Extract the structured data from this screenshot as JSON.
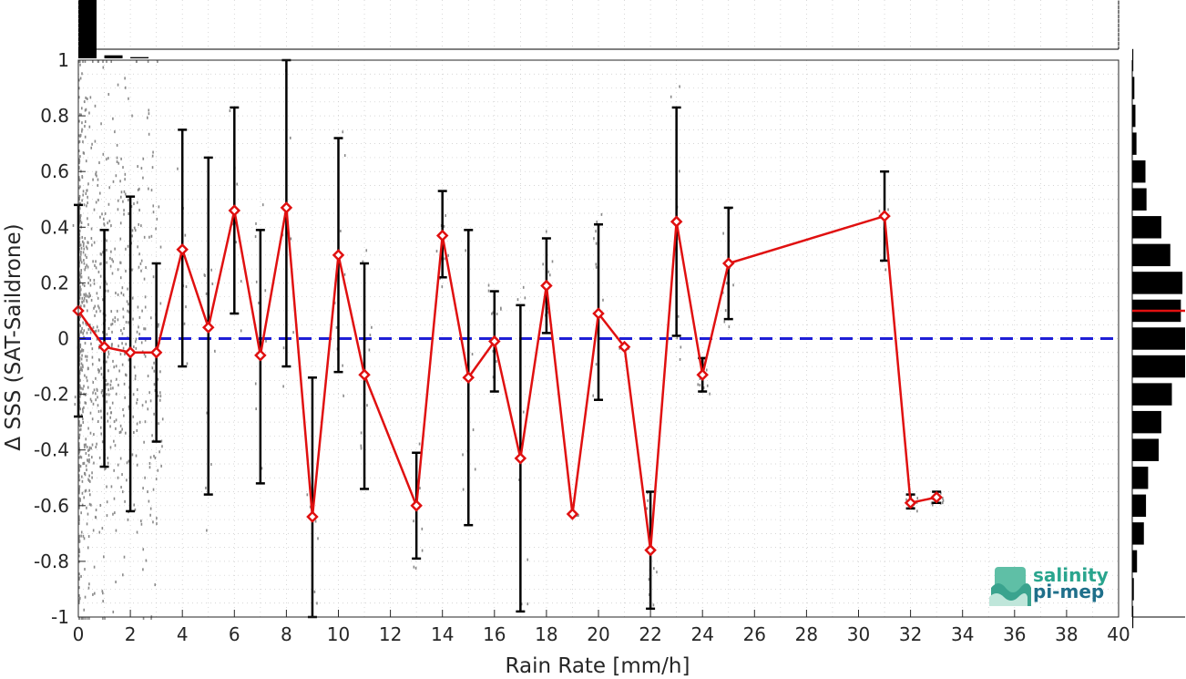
{
  "chart_data": {
    "type": "line",
    "xlabel": "Rain Rate [mm/h]",
    "ylabel": "Δ SSS (SAT-Saildrone)",
    "xlim": [
      0,
      40
    ],
    "ylim": [
      -1,
      1
    ],
    "x_ticks": [
      "0",
      "2",
      "4",
      "6",
      "8",
      "10",
      "12",
      "14",
      "16",
      "18",
      "20",
      "22",
      "24",
      "26",
      "28",
      "30",
      "32",
      "34",
      "36",
      "38",
      "40"
    ],
    "y_ticks": [
      "1",
      "0.8",
      "0.6",
      "0.4",
      "0.2",
      "0",
      "-0.2",
      "-0.4",
      "-0.6",
      "-0.8",
      "-1"
    ],
    "grid": "dotted",
    "reference_line": {
      "y": 0,
      "color": "#1f1fd6",
      "style": "dashed"
    },
    "mean_series": {
      "color": "#e01010",
      "marker": "diamond",
      "x": [
        0,
        1,
        2,
        3,
        4,
        5,
        6,
        7,
        8,
        9,
        10,
        11,
        13,
        14,
        15,
        16,
        17,
        18,
        19,
        20,
        21,
        22,
        23,
        24,
        25,
        31,
        32,
        33
      ],
      "y": [
        0.1,
        -0.03,
        -0.05,
        -0.05,
        0.32,
        0.04,
        0.46,
        -0.06,
        0.47,
        -0.64,
        0.3,
        -0.13,
        -0.6,
        0.37,
        -0.14,
        -0.01,
        -0.43,
        0.19,
        -0.63,
        0.09,
        -0.03,
        -0.76,
        0.42,
        -0.13,
        0.27,
        0.44,
        -0.59,
        -0.57
      ],
      "err_low": [
        -0.28,
        -0.46,
        -0.62,
        -0.37,
        -0.1,
        -0.56,
        0.09,
        -0.52,
        -0.1,
        -1.0,
        -0.12,
        -0.54,
        -0.79,
        0.22,
        -0.67,
        -0.19,
        -0.98,
        0.02,
        -0.63,
        -0.22,
        -0.03,
        -0.97,
        0.01,
        -0.19,
        0.07,
        0.28,
        -0.61,
        -0.59
      ],
      "err_high": [
        0.48,
        0.39,
        0.51,
        0.27,
        0.75,
        0.65,
        0.83,
        0.39,
        1.0,
        -0.14,
        0.72,
        0.27,
        -0.41,
        0.53,
        0.39,
        0.17,
        0.12,
        0.36,
        -0.63,
        0.41,
        -0.03,
        -0.55,
        0.83,
        -0.07,
        0.47,
        0.6,
        -0.56,
        -0.55
      ]
    },
    "top_histogram": {
      "x_bins": [
        0,
        1,
        2
      ],
      "relative_counts": [
        1.0,
        0.05,
        0.02
      ]
    },
    "right_histogram": {
      "y_bins": [
        1.0,
        0.9,
        0.8,
        0.7,
        0.6,
        0.5,
        0.4,
        0.3,
        0.2,
        0.1,
        0.0,
        -0.1,
        -0.2,
        -0.3,
        -0.4,
        -0.5,
        -0.6,
        -0.7,
        -0.8,
        -0.9,
        -1.0
      ],
      "relative_counts": [
        0.02,
        0.04,
        0.06,
        0.08,
        0.25,
        0.27,
        0.55,
        0.72,
        0.95,
        0.92,
        1.0,
        1.0,
        0.75,
        0.55,
        0.5,
        0.3,
        0.26,
        0.22,
        0.09,
        0.03,
        0.02
      ],
      "mean_marker_y": 0.1,
      "mean_marker_color": "#e01010"
    },
    "scatter_color": "#8a8a8a"
  },
  "logo": {
    "line1": "salinity",
    "line2": "pi-mep",
    "icon": "salinity-logo-icon"
  }
}
